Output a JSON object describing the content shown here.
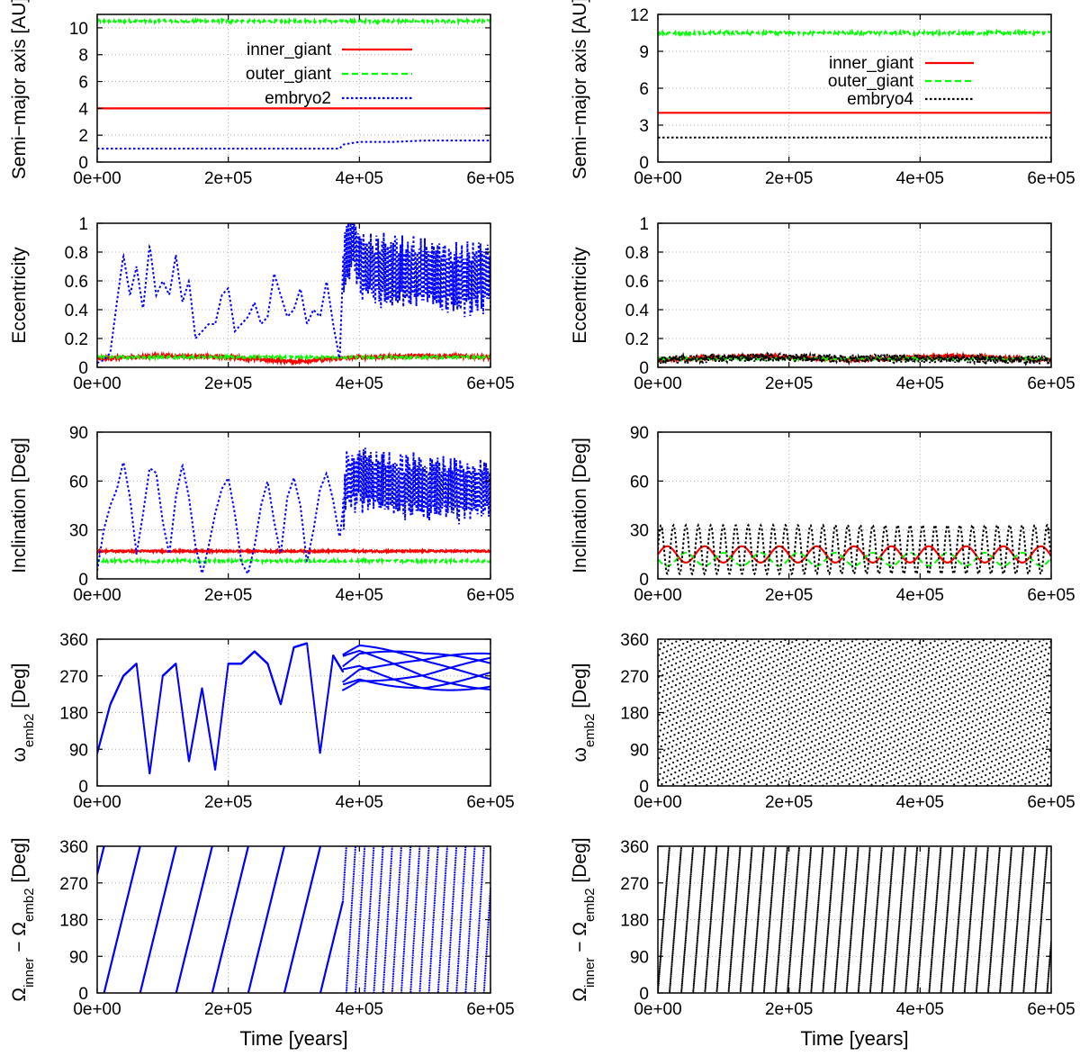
{
  "chart_data": [
    {
      "type": "line",
      "ylabel": "Semi−major axis [AU]",
      "xlim": [
        0,
        600000
      ],
      "ylim": [
        0,
        11
      ],
      "xticks": [
        "0e+00",
        "2e+05",
        "4e+05",
        "6e+05"
      ],
      "yticks": [
        0,
        2,
        4,
        6,
        8,
        10
      ],
      "grid": true,
      "legend_position": "top-right",
      "series": [
        {
          "name": "inner_giant",
          "style": "solid",
          "color": "#ff0000",
          "x": [
            0,
            600000
          ],
          "values": [
            4.0,
            4.0
          ]
        },
        {
          "name": "outer_giant",
          "style": "dashed",
          "color": "#00ff00",
          "x": [
            0,
            600000
          ],
          "values": [
            10.5,
            10.5
          ],
          "noise": 0.1
        },
        {
          "name": "embryo2",
          "style": "dotted",
          "color": "#0000ff",
          "x": [
            0,
            370000,
            375000,
            400000,
            450000,
            500000,
            600000
          ],
          "values": [
            1.0,
            1.0,
            1.3,
            1.5,
            1.5,
            1.6,
            1.6
          ]
        }
      ]
    },
    {
      "type": "line",
      "ylabel": "Semi−major axis [AU]",
      "xlim": [
        0,
        600000
      ],
      "ylim": [
        0,
        12
      ],
      "xticks": [
        "0e+00",
        "2e+05",
        "4e+05",
        "6e+05"
      ],
      "yticks": [
        0,
        3,
        6,
        9,
        12
      ],
      "grid": true,
      "legend_position": "top-right",
      "series": [
        {
          "name": "inner_giant",
          "style": "solid",
          "color": "#ff0000",
          "x": [
            0,
            600000
          ],
          "values": [
            4.0,
            4.0
          ]
        },
        {
          "name": "outer_giant",
          "style": "dashed",
          "color": "#00ff00",
          "x": [
            0,
            600000
          ],
          "values": [
            10.5,
            10.5
          ],
          "noise": 0.12
        },
        {
          "name": "embryo4",
          "style": "dotted",
          "color": "#000000",
          "x": [
            0,
            600000
          ],
          "values": [
            2.0,
            2.0
          ]
        }
      ]
    },
    {
      "type": "line",
      "ylabel": "Eccentricity",
      "xlim": [
        0,
        600000
      ],
      "ylim": [
        0,
        1
      ],
      "xticks": [
        "0e+00",
        "2e+05",
        "4e+05",
        "6e+05"
      ],
      "yticks": [
        0,
        0.2,
        0.4,
        0.6,
        0.8,
        1
      ],
      "grid": true,
      "series": [
        {
          "name": "inner_giant",
          "style": "solid",
          "color": "#ff0000",
          "x": [
            0,
            100000,
            200000,
            300000,
            400000,
            500000,
            600000
          ],
          "values": [
            0.06,
            0.08,
            0.07,
            0.04,
            0.07,
            0.08,
            0.07
          ],
          "noise": 0.012
        },
        {
          "name": "outer_giant",
          "style": "dashed",
          "color": "#00ff00",
          "x": [
            0,
            600000
          ],
          "values": [
            0.07,
            0.07
          ],
          "noise": 0.008
        },
        {
          "name": "embryo2",
          "style": "dotted",
          "color": "#0000ff",
          "x": [
            0,
            10000,
            20000,
            30000,
            40000,
            50000,
            60000,
            70000,
            80000,
            90000,
            100000,
            110000,
            120000,
            130000,
            140000,
            150000,
            160000,
            170000,
            180000,
            190000,
            200000,
            210000,
            220000,
            230000,
            240000,
            250000,
            260000,
            270000,
            280000,
            290000,
            300000,
            310000,
            320000,
            330000,
            340000,
            350000,
            360000,
            370000,
            375000,
            390000,
            400000,
            450000,
            500000,
            550000,
            600000
          ],
          "values": [
            0.03,
            0.05,
            0.1,
            0.45,
            0.78,
            0.5,
            0.7,
            0.4,
            0.85,
            0.5,
            0.6,
            0.5,
            0.78,
            0.45,
            0.6,
            0.2,
            0.25,
            0.3,
            0.3,
            0.5,
            0.55,
            0.25,
            0.3,
            0.35,
            0.45,
            0.3,
            0.35,
            0.65,
            0.5,
            0.35,
            0.4,
            0.55,
            0.3,
            0.4,
            0.35,
            0.6,
            0.3,
            0.05,
            0.7,
            0.9,
            0.7,
            0.65,
            0.65,
            0.6,
            0.65
          ],
          "osc_start": 375000,
          "osc_amp": 0.28
        }
      ]
    },
    {
      "type": "line",
      "ylabel": "Eccentricity",
      "xlim": [
        0,
        600000
      ],
      "ylim": [
        0,
        1
      ],
      "xticks": [
        "0e+00",
        "2e+05",
        "4e+05",
        "6e+05"
      ],
      "yticks": [
        0,
        0.2,
        0.4,
        0.6,
        0.8,
        1
      ],
      "grid": true,
      "series": [
        {
          "name": "inner_giant",
          "style": "solid",
          "color": "#ff0000",
          "x": [
            0,
            150000,
            300000,
            450000,
            600000
          ],
          "values": [
            0.05,
            0.08,
            0.05,
            0.08,
            0.05
          ],
          "noise": 0.01
        },
        {
          "name": "outer_giant",
          "style": "dashed",
          "color": "#00ff00",
          "x": [
            0,
            600000
          ],
          "values": [
            0.06,
            0.06
          ],
          "noise": 0.008
        },
        {
          "name": "embryo4",
          "style": "dotted",
          "color": "#000000",
          "x": [
            0,
            150000,
            300000,
            450000,
            600000
          ],
          "values": [
            0.05,
            0.07,
            0.06,
            0.06,
            0.05
          ],
          "noise": 0.03
        }
      ]
    },
    {
      "type": "line",
      "ylabel": "Inclination [Deg]",
      "xlim": [
        0,
        600000
      ],
      "ylim": [
        0,
        90
      ],
      "xticks": [
        "0e+00",
        "2e+05",
        "4e+05",
        "6e+05"
      ],
      "yticks": [
        0,
        30,
        60,
        90
      ],
      "grid": true,
      "series": [
        {
          "name": "inner_giant",
          "style": "solid",
          "color": "#ff0000",
          "x": [
            0,
            600000
          ],
          "values": [
            17,
            17
          ],
          "noise": 0.6
        },
        {
          "name": "outer_giant",
          "style": "dashed",
          "color": "#00ff00",
          "x": [
            0,
            600000
          ],
          "values": [
            11,
            11
          ],
          "noise": 0.8
        },
        {
          "name": "embryo2",
          "style": "dotted",
          "color": "#0000ff",
          "x": [
            0,
            10000,
            20000,
            30000,
            40000,
            50000,
            60000,
            70000,
            80000,
            90000,
            100000,
            110000,
            120000,
            130000,
            140000,
            150000,
            160000,
            170000,
            180000,
            190000,
            200000,
            210000,
            220000,
            230000,
            240000,
            250000,
            260000,
            270000,
            280000,
            290000,
            300000,
            310000,
            320000,
            330000,
            340000,
            350000,
            360000,
            370000,
            380000,
            400000,
            450000,
            500000,
            550000,
            600000
          ],
          "values": [
            5,
            30,
            45,
            55,
            72,
            50,
            15,
            40,
            68,
            65,
            35,
            15,
            50,
            70,
            50,
            20,
            3,
            20,
            40,
            55,
            62,
            40,
            10,
            3,
            20,
            45,
            60,
            35,
            15,
            50,
            62,
            45,
            10,
            30,
            55,
            65,
            48,
            25,
            60,
            62,
            58,
            55,
            55,
            55
          ],
          "osc_start": 375000,
          "osc_amp": 22
        }
      ]
    },
    {
      "type": "line",
      "ylabel": "Inclination [Deg]",
      "xlim": [
        0,
        600000
      ],
      "ylim": [
        0,
        90
      ],
      "xticks": [
        "0e+00",
        "2e+05",
        "4e+05",
        "6e+05"
      ],
      "yticks": [
        0,
        30,
        60,
        90
      ],
      "grid": true,
      "series": [
        {
          "name": "inner_giant",
          "style": "solid",
          "color": "#ff0000",
          "x": [
            0,
            600000
          ],
          "values": [
            15,
            15
          ],
          "osc_period": 57000,
          "osc_amp": 5
        },
        {
          "name": "outer_giant",
          "style": "dashed",
          "color": "#00ff00",
          "x": [
            0,
            600000
          ],
          "values": [
            12,
            12
          ],
          "osc_period": 57000,
          "osc_amp": -4
        },
        {
          "name": "embryo4",
          "style": "dotted",
          "color": "#000000",
          "x": [
            0,
            600000
          ],
          "values": [
            18,
            18
          ],
          "osc_period": 19000,
          "osc_amp": 15
        }
      ]
    },
    {
      "type": "scatter",
      "ylabel": "ωemb2 [Deg]",
      "ylabel_main": "ω",
      "ylabel_sub": "emb2",
      "ylabel_rest": " [Deg]",
      "xlim": [
        0,
        600000
      ],
      "ylim": [
        0,
        360
      ],
      "xticks": [
        "0e+00",
        "2e+05",
        "4e+05",
        "6e+05"
      ],
      "yticks": [
        0,
        90,
        180,
        270,
        360
      ],
      "grid": true,
      "series": [
        {
          "name": "embryo2",
          "color": "#0000ff",
          "x": [
            0,
            20000,
            40000,
            60000,
            80000,
            100000,
            120000,
            140000,
            160000,
            180000,
            200000,
            220000,
            240000,
            260000,
            280000,
            300000,
            320000,
            340000,
            360000,
            375000,
            400000,
            500000,
            600000
          ],
          "values": [
            80,
            200,
            270,
            300,
            30,
            270,
            300,
            60,
            240,
            40,
            300,
            300,
            330,
            300,
            200,
            340,
            350,
            80,
            320,
            280,
            300,
            280,
            280
          ],
          "wrap": true,
          "osc_start": 375000,
          "osc_amp": 45
        }
      ]
    },
    {
      "type": "scatter",
      "ylabel": "ωemb2 [Deg]",
      "ylabel_main": "ω",
      "ylabel_sub": "emb2",
      "ylabel_rest": " [Deg]",
      "xlim": [
        0,
        600000
      ],
      "ylim": [
        0,
        360
      ],
      "xticks": [
        "0e+00",
        "2e+05",
        "4e+05",
        "6e+05"
      ],
      "yticks": [
        0,
        90,
        180,
        270,
        360
      ],
      "grid": true,
      "series": [
        {
          "name": "embryo4",
          "color": "#000000",
          "x": [
            0,
            600000
          ],
          "values": [
            0,
            360
          ],
          "rate_deg_per_yr": 0.009,
          "wrap": true
        }
      ]
    },
    {
      "type": "scatter",
      "ylabel": "Ωinner − Ωemb2 [Deg]",
      "ylabel_main": "Ω",
      "ylabel_sub": "inner",
      "ylabel_mid": " − Ω",
      "ylabel_sub2": "emb2",
      "ylabel_rest": " [Deg]",
      "xlim": [
        0,
        600000
      ],
      "ylim": [
        0,
        360
      ],
      "xticks": [
        "0e+00",
        "2e+05",
        "4e+05",
        "6e+05"
      ],
      "yticks": [
        0,
        90,
        180,
        270,
        360
      ],
      "grid": true,
      "xlabel": "Time [years]",
      "series": [
        {
          "name": "embryo2",
          "color": "#0000ff",
          "x": [
            0,
            600000
          ],
          "values": [
            290,
            360
          ],
          "period_yr": 55000,
          "period_after_375k": 14000,
          "wrap": true
        }
      ]
    },
    {
      "type": "scatter",
      "ylabel": "Ωinner − Ωemb2 [Deg]",
      "ylabel_main": "Ω",
      "ylabel_sub": "inner",
      "ylabel_mid": " − Ω",
      "ylabel_sub2": "emb2",
      "ylabel_rest": " [Deg]",
      "xlim": [
        0,
        600000
      ],
      "ylim": [
        0,
        360
      ],
      "xticks": [
        "0e+00",
        "2e+05",
        "4e+05",
        "6e+05"
      ],
      "yticks": [
        0,
        90,
        180,
        270,
        360
      ],
      "grid": true,
      "xlabel": "Time [years]",
      "series": [
        {
          "name": "embryo4",
          "color": "#000000",
          "x": [
            0,
            600000
          ],
          "values": [
            0,
            360
          ],
          "period_yr": 18000,
          "wrap": true
        }
      ]
    }
  ]
}
